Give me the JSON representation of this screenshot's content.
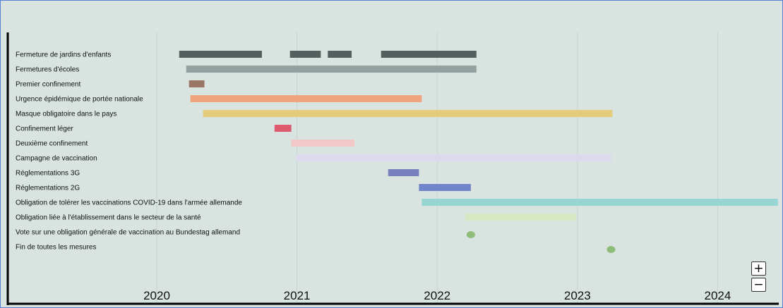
{
  "chart_data": {
    "type": "gantt",
    "title": "",
    "xlabel": "",
    "ylabel": "",
    "x_ticks": [
      "2020",
      "2021",
      "2022",
      "2023",
      "2024"
    ],
    "xlim": [
      2019.0,
      2024.43
    ],
    "grid": true,
    "rows": [
      {
        "label": "Fermeture de jardins d'enfants",
        "color": "#55605e",
        "segments": [
          [
            2020.16,
            2020.75
          ],
          [
            2020.95,
            2021.17
          ],
          [
            2021.22,
            2021.39
          ],
          [
            2021.6,
            2022.28
          ]
        ]
      },
      {
        "label": "Fermetures d'écoles",
        "color": "#93a2a0",
        "segments": [
          [
            2020.21,
            2022.28
          ]
        ]
      },
      {
        "label": "Premier confinement",
        "color": "#9b7565",
        "segments": [
          [
            2020.23,
            2020.34
          ]
        ]
      },
      {
        "label": "Urgence épidémique de portée nationale",
        "color": "#f1a47d",
        "segments": [
          [
            2020.24,
            2021.89
          ]
        ]
      },
      {
        "label": "Masque obligatoire dans le pays",
        "color": "#e4cc7c",
        "segments": [
          [
            2020.33,
            2023.25
          ]
        ]
      },
      {
        "label": "Confinement léger",
        "color": "#dd5a6f",
        "segments": [
          [
            2020.84,
            2020.96
          ]
        ]
      },
      {
        "label": "Deuxième confinement",
        "color": "#f3c9c7",
        "segments": [
          [
            2020.96,
            2021.41
          ]
        ]
      },
      {
        "label": "Campagne de vaccination",
        "color": "#dcdaea",
        "segments": [
          [
            2020.99,
            2023.24
          ]
        ]
      },
      {
        "label": "Réglementations 3G",
        "color": "#7a82bd",
        "segments": [
          [
            2021.65,
            2021.87
          ]
        ]
      },
      {
        "label": "Réglementations 2G",
        "color": "#6f84ca",
        "segments": [
          [
            2021.87,
            2022.24
          ]
        ]
      },
      {
        "label": "Obligation de tolérer les vaccinations COVID-19 dans l'armée allemande",
        "color": "#97d5d3",
        "segments": [
          [
            2021.89,
            2024.43
          ]
        ]
      },
      {
        "label": "Obligation liée à l'établissement dans le secteur de la santé",
        "color": "#d5e8c2",
        "segments": [
          [
            2022.2,
            2022.99
          ]
        ]
      },
      {
        "label": "Vote sur une obligation générale de vaccination au Bundestag allemand",
        "color": "#8ebd79",
        "point": 2022.24
      },
      {
        "label": "Fin de toutes les mesures",
        "color": "#8ebd79",
        "point": 2023.24
      }
    ]
  },
  "controls": {
    "zoom_in": "+",
    "zoom_out": "−"
  }
}
